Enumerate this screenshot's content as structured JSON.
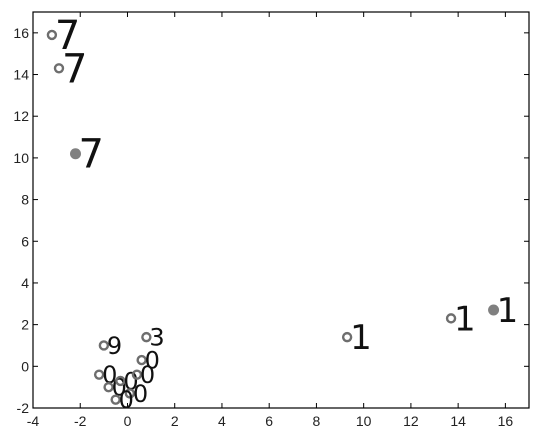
{
  "chart_data": {
    "type": "scatter",
    "title": "",
    "xlabel": "",
    "ylabel": "",
    "xlim": [
      -4,
      17
    ],
    "ylim": [
      -2,
      17
    ],
    "grid": false,
    "legend": "none",
    "xticks": [
      "-4",
      "-2",
      "0",
      "2",
      "4",
      "6",
      "8",
      "10",
      "12",
      "14",
      "16"
    ],
    "yticks": [
      "-2",
      "0",
      "2",
      "4",
      "6",
      "8",
      "10",
      "12",
      "14",
      "16"
    ],
    "colors": {
      "marker_fill": "#808080",
      "marker_ring": "#6e6e6e",
      "digit": "#111111",
      "axis": "#000000"
    },
    "points": [
      {
        "x": -3.2,
        "y": 15.9,
        "label": "7",
        "marker": "ring"
      },
      {
        "x": -2.9,
        "y": 14.3,
        "label": "7",
        "marker": "ring"
      },
      {
        "x": -2.2,
        "y": 10.2,
        "label": "7",
        "marker": "dot"
      },
      {
        "x": 9.3,
        "y": 1.4,
        "label": "1",
        "marker": "ring"
      },
      {
        "x": 13.7,
        "y": 2.3,
        "label": "1",
        "marker": "ring"
      },
      {
        "x": 15.5,
        "y": 2.7,
        "label": "1",
        "marker": "dot"
      },
      {
        "x": -1.0,
        "y": 1.0,
        "label": "9",
        "marker": "ring"
      },
      {
        "x": 0.8,
        "y": 1.4,
        "label": "3",
        "marker": "ring"
      },
      {
        "x": -1.2,
        "y": -0.4,
        "label": "0",
        "marker": "ring"
      },
      {
        "x": -0.8,
        "y": -1.0,
        "label": "0",
        "marker": "ring"
      },
      {
        "x": -0.3,
        "y": -0.7,
        "label": "0",
        "marker": "ring"
      },
      {
        "x": 0.1,
        "y": -1.3,
        "label": "0",
        "marker": "ring"
      },
      {
        "x": 0.4,
        "y": -0.4,
        "label": "0",
        "marker": "ring"
      },
      {
        "x": 0.6,
        "y": 0.3,
        "label": "0",
        "marker": "ring"
      },
      {
        "x": -0.5,
        "y": -1.6,
        "label": "0",
        "marker": "ring"
      }
    ]
  }
}
